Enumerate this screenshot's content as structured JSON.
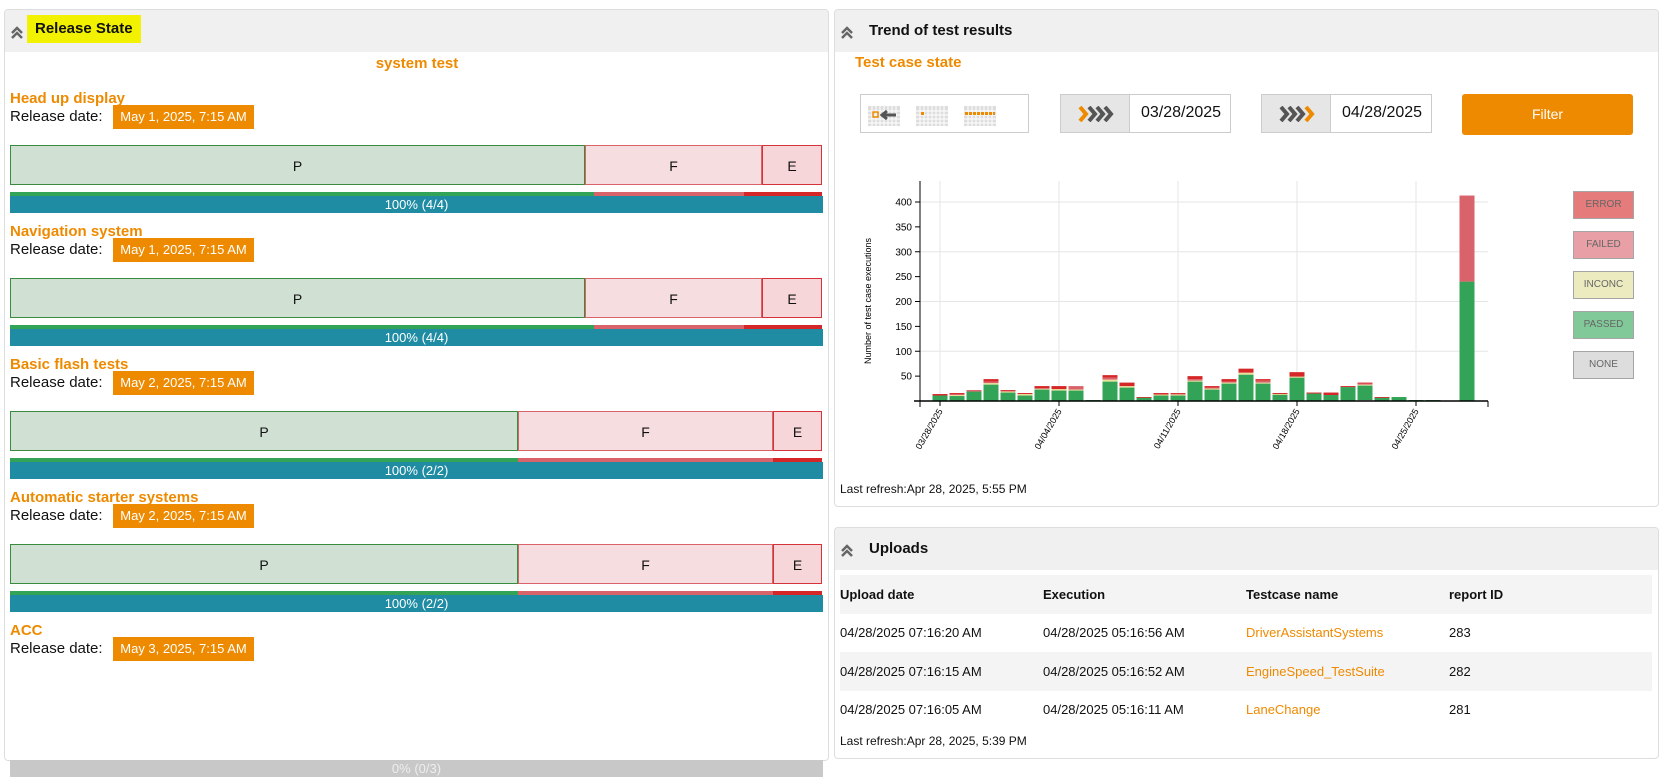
{
  "release_panel": {
    "title": "Release State",
    "subtitle": "system test",
    "release_label": "Release date:",
    "items": [
      {
        "name": "Head up display",
        "date": "May 1, 2025, 7:15 AM",
        "segments": {
          "P": "P",
          "F": "F",
          "E": "E"
        },
        "progress": "100% (4/4)",
        "percent": 100,
        "split": [
          0.708,
          0.218,
          0.074
        ]
      },
      {
        "name": "Navigation system",
        "date": "May 1, 2025, 7:15 AM",
        "segments": {
          "P": "P",
          "F": "F",
          "E": "E"
        },
        "progress": "100% (4/4)",
        "percent": 100,
        "split": [
          0.708,
          0.218,
          0.074
        ]
      },
      {
        "name": "Basic flash tests",
        "date": "May 2, 2025, 7:15 AM",
        "segments": {
          "P": "P",
          "F": "F",
          "E": "E"
        },
        "progress": "100% (2/2)",
        "percent": 100,
        "split": [
          0.625,
          0.314,
          0.061
        ]
      },
      {
        "name": "Automatic starter systems",
        "date": "May 2, 2025, 7:15 AM",
        "segments": {
          "P": "P",
          "F": "F",
          "E": "E"
        },
        "progress": "100% (2/2)",
        "percent": 100,
        "split": [
          0.625,
          0.314,
          0.061
        ]
      },
      {
        "name": "ACC",
        "date": "May 3, 2025, 7:15 AM",
        "progress": "0% (0/3)",
        "percent": 0
      }
    ]
  },
  "trend_panel": {
    "title": "Trend of test results",
    "subtitle": "Test case state",
    "from_date": "03/28/2025",
    "to_date": "04/28/2025",
    "filter_label": "Filter",
    "last_refresh": "Last refresh:Apr 28, 2025, 5:55 PM"
  },
  "colors": {
    "accent": "#ee8a00",
    "progress": "#1f8ca3",
    "passed": "#33a457",
    "inconc": "#e8e19a",
    "failed": "#d9636b",
    "error": "#d62728",
    "none": "#cccccc"
  },
  "chart_data": {
    "type": "bar",
    "stacked": true,
    "ylabel": "Number of test case executions",
    "ylim": [
      0,
      440
    ],
    "yticks": [
      50,
      100,
      150,
      200,
      250,
      300,
      350,
      400
    ],
    "xticks": [
      "03/28/2025",
      "04/04/2025",
      "04/11/2025",
      "04/18/2025",
      "04/25/2025"
    ],
    "grid": true,
    "legend_placement": "right",
    "legend": [
      "ERROR",
      "FAILED",
      "INCONC",
      "PASSED",
      "NONE"
    ],
    "series_order": [
      "NONE",
      "PASSED",
      "INCONC",
      "FAILED",
      "ERROR"
    ],
    "days": [
      {
        "date": "03/28/2025",
        "NONE": 0,
        "PASSED": 11,
        "INCONC": 0,
        "FAILED": 0,
        "ERROR": 3
      },
      {
        "date": "03/29/2025",
        "NONE": 0,
        "PASSED": 10,
        "INCONC": 2,
        "FAILED": 2,
        "ERROR": 2
      },
      {
        "date": "03/30/2025",
        "NONE": 0,
        "PASSED": 19,
        "INCONC": 0,
        "FAILED": 3,
        "ERROR": 0
      },
      {
        "date": "03/31/2025",
        "NONE": 0,
        "PASSED": 33,
        "INCONC": 3,
        "FAILED": 3,
        "ERROR": 5
      },
      {
        "date": "04/01/2025",
        "NONE": 0,
        "PASSED": 17,
        "INCONC": 2,
        "FAILED": 2,
        "ERROR": 1
      },
      {
        "date": "04/02/2025",
        "NONE": 0,
        "PASSED": 11,
        "INCONC": 3,
        "FAILED": 0,
        "ERROR": 2
      },
      {
        "date": "04/03/2025",
        "NONE": 0,
        "PASSED": 23,
        "INCONC": 2,
        "FAILED": 1,
        "ERROR": 4
      },
      {
        "date": "04/04/2025",
        "NONE": 0,
        "PASSED": 21,
        "INCONC": 3,
        "FAILED": 0,
        "ERROR": 6
      },
      {
        "date": "04/05/2025",
        "NONE": 0,
        "PASSED": 21,
        "INCONC": 2,
        "FAILED": 7,
        "ERROR": 0
      },
      {
        "date": "04/06/2025",
        "NONE": 0,
        "PASSED": 2,
        "INCONC": 0,
        "FAILED": 0,
        "ERROR": 0
      },
      {
        "date": "04/07/2025",
        "NONE": 0,
        "PASSED": 39,
        "INCONC": 4,
        "FAILED": 4,
        "ERROR": 5
      },
      {
        "date": "04/08/2025",
        "NONE": 1,
        "PASSED": 26,
        "INCONC": 3,
        "FAILED": 0,
        "ERROR": 7
      },
      {
        "date": "04/09/2025",
        "NONE": 0,
        "PASSED": 7,
        "INCONC": 0,
        "FAILED": 0,
        "ERROR": 1
      },
      {
        "date": "04/10/2025",
        "NONE": 0,
        "PASSED": 11,
        "INCONC": 2,
        "FAILED": 0,
        "ERROR": 3
      },
      {
        "date": "04/11/2025",
        "NONE": 0,
        "PASSED": 11,
        "INCONC": 2,
        "FAILED": 2,
        "ERROR": 1
      },
      {
        "date": "04/12/2025",
        "NONE": 1,
        "PASSED": 38,
        "INCONC": 2,
        "FAILED": 3,
        "ERROR": 6
      },
      {
        "date": "04/13/2025",
        "NONE": 1,
        "PASSED": 22,
        "INCONC": 2,
        "FAILED": 2,
        "ERROR": 3
      },
      {
        "date": "04/14/2025",
        "NONE": 0,
        "PASSED": 35,
        "INCONC": 2,
        "FAILED": 2,
        "ERROR": 5
      },
      {
        "date": "04/15/2025",
        "NONE": 0,
        "PASSED": 53,
        "INCONC": 4,
        "FAILED": 0,
        "ERROR": 8
      },
      {
        "date": "04/16/2025",
        "NONE": 0,
        "PASSED": 35,
        "INCONC": 2,
        "FAILED": 4,
        "ERROR": 3
      },
      {
        "date": "04/17/2025",
        "NONE": 0,
        "PASSED": 13,
        "INCONC": 1,
        "FAILED": 0,
        "ERROR": 2
      },
      {
        "date": "04/18/2025",
        "NONE": 0,
        "PASSED": 47,
        "INCONC": 2,
        "FAILED": 0,
        "ERROR": 9
      },
      {
        "date": "04/19/2025",
        "NONE": 0,
        "PASSED": 15,
        "INCONC": 0,
        "FAILED": 0,
        "ERROR": 2
      },
      {
        "date": "04/20/2025",
        "NONE": 0,
        "PASSED": 12,
        "INCONC": 0,
        "FAILED": 0,
        "ERROR": 5
      },
      {
        "date": "04/21/2025",
        "NONE": 0,
        "PASSED": 28,
        "INCONC": 0,
        "FAILED": 0,
        "ERROR": 2
      },
      {
        "date": "04/22/2025",
        "NONE": 2,
        "PASSED": 29,
        "INCONC": 2,
        "FAILED": 3,
        "ERROR": 1
      },
      {
        "date": "04/23/2025",
        "NONE": 0,
        "PASSED": 7,
        "INCONC": 0,
        "FAILED": 0,
        "ERROR": 1
      },
      {
        "date": "04/24/2025",
        "NONE": 0,
        "PASSED": 8,
        "INCONC": 0,
        "FAILED": 0,
        "ERROR": 0
      },
      {
        "date": "04/25/2025",
        "NONE": 0,
        "PASSED": 2,
        "INCONC": 0,
        "FAILED": 0,
        "ERROR": 0
      },
      {
        "date": "04/26/2025",
        "NONE": 0,
        "PASSED": 2,
        "INCONC": 0,
        "FAILED": 0,
        "ERROR": 0
      },
      {
        "date": "04/27/2025",
        "NONE": 0,
        "PASSED": 0,
        "INCONC": 0,
        "FAILED": 0,
        "ERROR": 0
      },
      {
        "date": "04/28/2025",
        "NONE": 0,
        "PASSED": 240,
        "INCONC": 0,
        "FAILED": 173,
        "ERROR": 0
      }
    ]
  },
  "uploads_panel": {
    "title": "Uploads",
    "columns": [
      "Upload date",
      "Execution",
      "Testcase name",
      "report ID"
    ],
    "rows": [
      [
        "04/28/2025 07:16:20 AM",
        "04/28/2025 05:16:56 AM",
        "DriverAssistantSystems",
        "283"
      ],
      [
        "04/28/2025 07:16:15 AM",
        "04/28/2025 05:16:52 AM",
        "EngineSpeed_TestSuite",
        "282"
      ],
      [
        "04/28/2025 07:16:05 AM",
        "04/28/2025 05:16:11 AM",
        "LaneChange",
        "281"
      ]
    ],
    "last_refresh": "Last refresh:Apr 28, 2025, 5:39 PM"
  }
}
